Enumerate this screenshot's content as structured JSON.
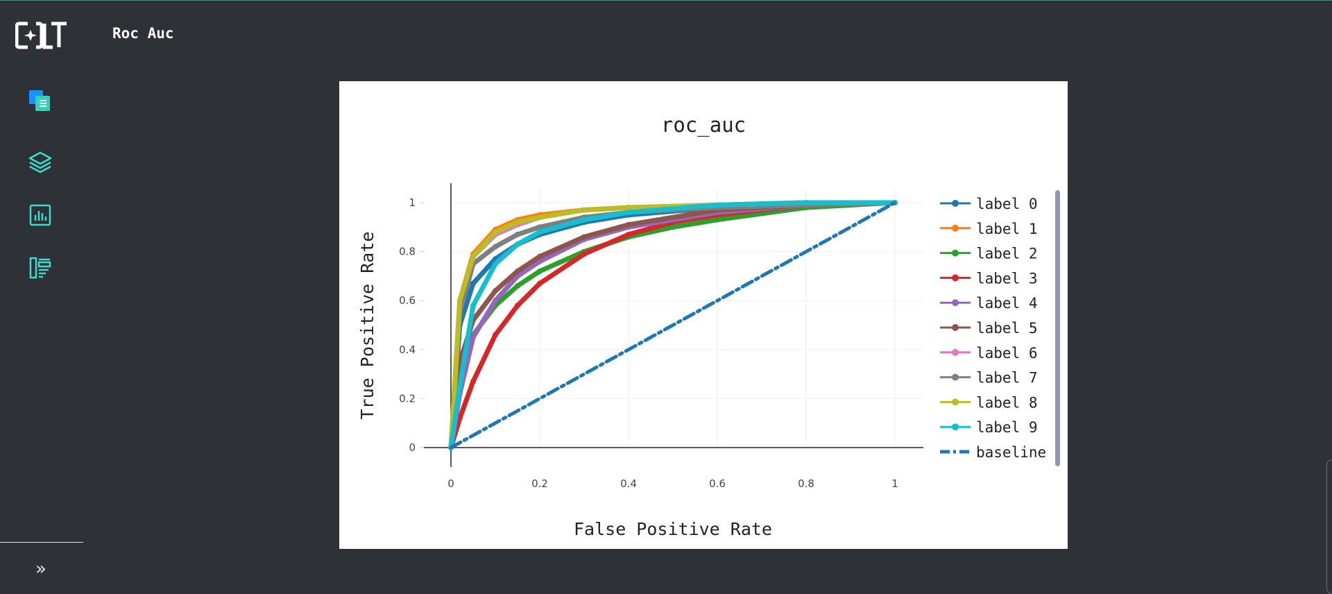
{
  "header": {
    "title": "Roc Auc"
  },
  "sidebar": {
    "items": [
      {
        "icon": "documents-icon"
      },
      {
        "icon": "layers-icon"
      },
      {
        "icon": "bar-chart-icon"
      },
      {
        "icon": "report-list-icon"
      }
    ],
    "expand_icon": "»"
  },
  "colors": {
    "background": "#2e3236",
    "accent": "#3ddbd0"
  },
  "chart_data": {
    "type": "line",
    "title": "roc_auc",
    "xlabel": "False Positive Rate",
    "ylabel": "True Positive Rate",
    "xlim": [
      0,
      1
    ],
    "ylim": [
      0,
      1
    ],
    "xticks": [
      "0",
      "0.2",
      "0.4",
      "0.6",
      "0.8",
      "1"
    ],
    "yticks": [
      "0",
      "0.2",
      "0.4",
      "0.6",
      "0.8",
      "1"
    ],
    "grid": true,
    "legend": "right",
    "series": [
      {
        "name": "label 0",
        "color": "#1f77b4",
        "x": [
          0,
          0.02,
          0.05,
          0.1,
          0.15,
          0.2,
          0.3,
          0.4,
          0.6,
          0.8,
          1
        ],
        "y": [
          0,
          0.5,
          0.67,
          0.77,
          0.83,
          0.87,
          0.92,
          0.95,
          0.98,
          0.99,
          1
        ]
      },
      {
        "name": "label 1",
        "color": "#ff7f0e",
        "x": [
          0,
          0.02,
          0.05,
          0.1,
          0.15,
          0.2,
          0.3,
          0.4,
          0.6,
          0.8,
          1
        ],
        "y": [
          0,
          0.6,
          0.79,
          0.89,
          0.93,
          0.95,
          0.97,
          0.98,
          0.99,
          1,
          1
        ]
      },
      {
        "name": "label 2",
        "color": "#2ca02c",
        "x": [
          0,
          0.02,
          0.05,
          0.1,
          0.15,
          0.2,
          0.3,
          0.4,
          0.5,
          0.6,
          0.8,
          1
        ],
        "y": [
          0,
          0.3,
          0.46,
          0.58,
          0.66,
          0.72,
          0.8,
          0.86,
          0.9,
          0.93,
          0.98,
          1
        ]
      },
      {
        "name": "label 3",
        "color": "#d62728",
        "x": [
          0,
          0.02,
          0.05,
          0.1,
          0.15,
          0.2,
          0.3,
          0.4,
          0.5,
          0.6,
          0.8,
          1
        ],
        "y": [
          0,
          0.12,
          0.27,
          0.46,
          0.58,
          0.67,
          0.79,
          0.87,
          0.92,
          0.95,
          0.99,
          1
        ]
      },
      {
        "name": "label 4",
        "color": "#9467bd",
        "x": [
          0,
          0.02,
          0.05,
          0.1,
          0.15,
          0.2,
          0.3,
          0.4,
          0.6,
          0.8,
          1
        ],
        "y": [
          0,
          0.22,
          0.45,
          0.6,
          0.7,
          0.76,
          0.85,
          0.9,
          0.96,
          0.99,
          1
        ]
      },
      {
        "name": "label 5",
        "color": "#8c564b",
        "x": [
          0,
          0.02,
          0.05,
          0.1,
          0.15,
          0.2,
          0.3,
          0.4,
          0.6,
          0.8,
          1
        ],
        "y": [
          0,
          0.35,
          0.52,
          0.64,
          0.72,
          0.78,
          0.86,
          0.91,
          0.97,
          0.99,
          1
        ]
      },
      {
        "name": "label 6",
        "color": "#e377c2",
        "x": [
          0,
          0.02,
          0.05,
          0.1,
          0.15,
          0.2,
          0.3,
          0.4,
          0.6,
          0.8,
          1
        ],
        "y": [
          0,
          0.6,
          0.78,
          0.87,
          0.91,
          0.94,
          0.97,
          0.98,
          0.99,
          1,
          1
        ]
      },
      {
        "name": "label 7",
        "color": "#7f7f7f",
        "x": [
          0,
          0.02,
          0.05,
          0.1,
          0.15,
          0.2,
          0.3,
          0.4,
          0.6,
          0.8,
          1
        ],
        "y": [
          0,
          0.55,
          0.75,
          0.82,
          0.87,
          0.9,
          0.94,
          0.96,
          0.98,
          0.99,
          1
        ]
      },
      {
        "name": "label 8",
        "color": "#bcbd22",
        "x": [
          0,
          0.02,
          0.05,
          0.1,
          0.15,
          0.2,
          0.3,
          0.4,
          0.6,
          0.8,
          1
        ],
        "y": [
          0,
          0.6,
          0.78,
          0.88,
          0.92,
          0.94,
          0.97,
          0.98,
          0.99,
          1,
          1
        ]
      },
      {
        "name": "label 9",
        "color": "#17becf",
        "x": [
          0,
          0.02,
          0.05,
          0.1,
          0.15,
          0.2,
          0.3,
          0.4,
          0.6,
          0.8,
          1
        ],
        "y": [
          0,
          0.25,
          0.58,
          0.75,
          0.83,
          0.88,
          0.93,
          0.96,
          0.99,
          1,
          1
        ]
      },
      {
        "name": "baseline",
        "color": "#1f77b4",
        "dash": "dashdot",
        "x": [
          0,
          1
        ],
        "y": [
          0,
          1
        ]
      }
    ]
  }
}
